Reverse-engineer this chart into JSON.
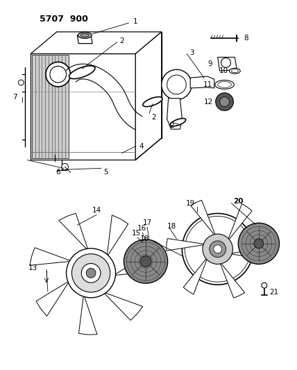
{
  "title": "5707 900",
  "bg_color": "#ffffff",
  "fig_width": 4.28,
  "fig_height": 5.33,
  "dpi": 100
}
